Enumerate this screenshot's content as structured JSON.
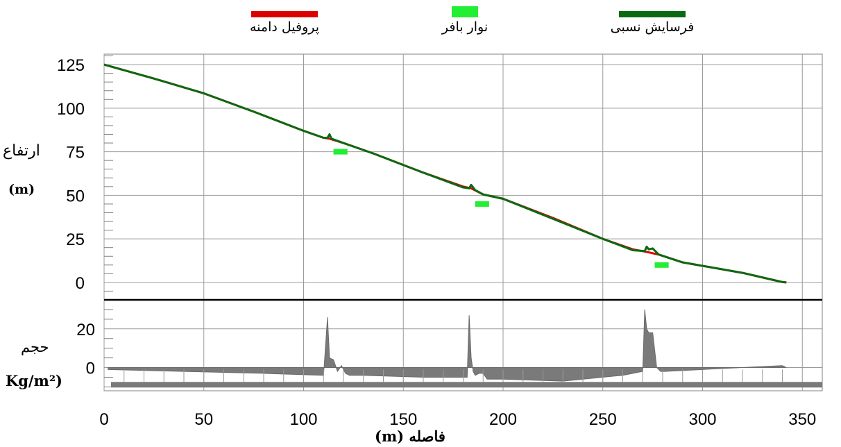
{
  "chart_data": {
    "type": "line",
    "legend": [
      {
        "name": "پروفیل دامنه",
        "color": "#dd0000"
      },
      {
        "name": "نوار بافر",
        "color": "#22ee33"
      },
      {
        "name": "فرسایش نسبی",
        "color": "#0a6a12"
      }
    ],
    "xlabel": "فاصله (m)",
    "ylabel_top": "ارتفاع",
    "ylabel_top_unit": "(m)",
    "ylabel_bottom": "حجم",
    "ylabel_bottom_unit": "Kg/m²)",
    "x_ticks": [
      "0",
      "50",
      "100",
      "150",
      "200",
      "250",
      "300",
      "350"
    ],
    "y_ticks_top": [
      "125",
      "100",
      "75",
      "50",
      "25",
      "0"
    ],
    "y_ticks_bottom": [
      "20",
      "0"
    ],
    "xlim": [
      0,
      360
    ],
    "ylim_top": [
      -10,
      131
    ],
    "ylim_bottom": [
      -12,
      35
    ],
    "grid": true,
    "series": [
      {
        "name": "پروفیل دامنه",
        "x": [
          0,
          25,
          50,
          75,
          100,
          110,
          113,
          120,
          135,
          160,
          180,
          184,
          190,
          200,
          225,
          250,
          265,
          272,
          278,
          290,
          320,
          340,
          342
        ],
        "y": [
          125,
          117,
          108.5,
          98,
          87,
          83,
          82.5,
          80,
          74,
          63,
          55,
          54,
          50.5,
          48,
          37,
          25,
          19,
          17.5,
          16,
          11.5,
          5.5,
          0.2,
          0
        ]
      },
      {
        "name": "فرسایش نسبی",
        "x": [
          0,
          25,
          50,
          75,
          100,
          110,
          112,
          113,
          114,
          120,
          135,
          160,
          180,
          183,
          184,
          186,
          190,
          200,
          225,
          250,
          265,
          271,
          272,
          273,
          275,
          278,
          290,
          320,
          340,
          342
        ],
        "y": [
          125,
          117,
          108.5,
          98,
          87,
          83,
          83,
          85,
          82.5,
          80,
          74,
          63,
          54.5,
          54,
          56,
          53,
          50.5,
          48,
          36.5,
          25,
          18.5,
          18,
          20.5,
          19,
          19.5,
          16,
          11.5,
          5.5,
          0.2,
          0
        ]
      }
    ],
    "buffer_strips": [
      {
        "x_start": 115,
        "x_end": 122,
        "y": 75
      },
      {
        "x_start": 186,
        "x_end": 193,
        "y": 45
      },
      {
        "x_start": 276,
        "x_end": 283,
        "y": 10
      }
    ],
    "volume": {
      "x": [
        2,
        40,
        80,
        110,
        112,
        113,
        115,
        117,
        119,
        121,
        123,
        130,
        160,
        182,
        183,
        184,
        185,
        186,
        188,
        190,
        192,
        200,
        230,
        260,
        270,
        271,
        272,
        273,
        275,
        277,
        279,
        281,
        300,
        320,
        340,
        342
      ],
      "y": [
        -1,
        -2,
        -3,
        -4,
        26,
        5,
        4,
        -2,
        1,
        -3,
        -4,
        -4,
        -5,
        -5,
        27,
        5,
        -2,
        -4,
        -3,
        -3,
        -6,
        -6,
        -7,
        -4,
        -2,
        30,
        20,
        18,
        18,
        0,
        -2,
        -2,
        -1,
        0,
        1,
        0
      ]
    }
  }
}
